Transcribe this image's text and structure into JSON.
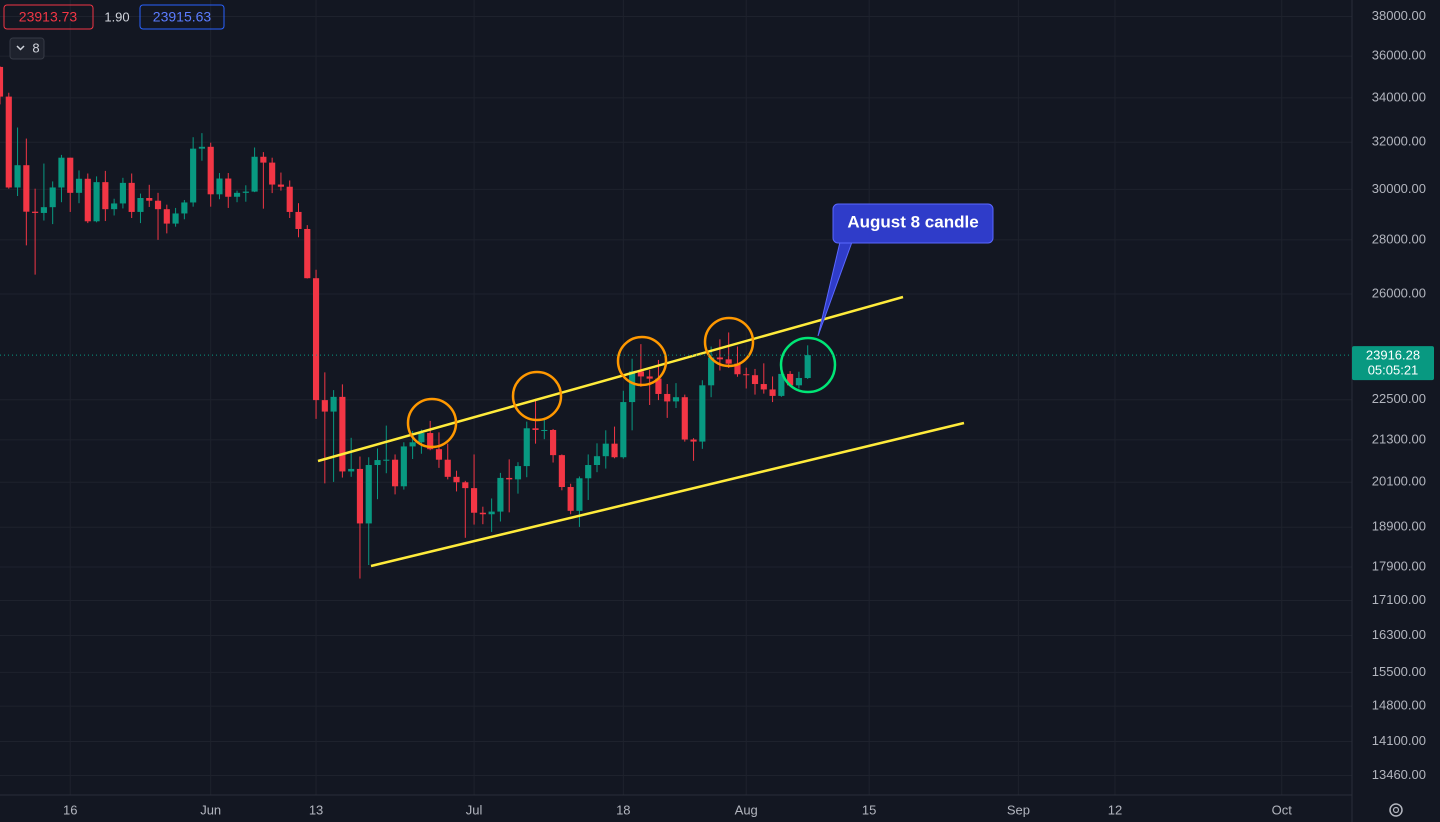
{
  "header": {
    "bid": "23913.73",
    "spread": "1.90",
    "ask": "23915.63",
    "interval": "8"
  },
  "annotation": "August 8 candle",
  "countdown": "05:05:21",
  "chart_data": {
    "type": "candlestick",
    "log_scale": true,
    "grid": true,
    "up_color": "#089981",
    "down_color": "#f23645",
    "last_price": 23916.28,
    "x": [
      "05-08",
      "05-09",
      "05-10",
      "05-11",
      "05-12",
      "05-13",
      "05-14",
      "05-15",
      "05-16",
      "05-17",
      "05-18",
      "05-19",
      "05-20",
      "05-21",
      "05-22",
      "05-23",
      "05-24",
      "05-25",
      "05-26",
      "05-27",
      "05-28",
      "05-29",
      "05-30",
      "05-31",
      "06-01",
      "06-02",
      "06-03",
      "06-04",
      "06-05",
      "06-06",
      "06-07",
      "06-08",
      "06-09",
      "06-10",
      "06-11",
      "06-12",
      "06-13",
      "06-14",
      "06-15",
      "06-16",
      "06-17",
      "06-18",
      "06-19",
      "06-20",
      "06-21",
      "06-22",
      "06-23",
      "06-24",
      "06-25",
      "06-26",
      "06-27",
      "06-28",
      "06-29",
      "06-30",
      "07-01",
      "07-02",
      "07-03",
      "07-04",
      "07-05",
      "07-06",
      "07-07",
      "07-08",
      "07-09",
      "07-10",
      "07-11",
      "07-12",
      "07-13",
      "07-14",
      "07-15",
      "07-16",
      "07-17",
      "07-18",
      "07-19",
      "07-20",
      "07-21",
      "07-22",
      "07-23",
      "07-24",
      "07-25",
      "07-26",
      "07-27",
      "07-28",
      "07-29",
      "07-30",
      "07-31",
      "08-01",
      "08-02",
      "08-03",
      "08-04",
      "08-05",
      "08-06",
      "08-07",
      "08-08"
    ],
    "open": [
      35470,
      34060,
      30080,
      31010,
      29100,
      29050,
      29280,
      30080,
      31330,
      29860,
      30440,
      28720,
      30300,
      29200,
      29430,
      30270,
      29090,
      29650,
      29540,
      29200,
      28630,
      29030,
      29470,
      31720,
      31800,
      29800,
      30450,
      29700,
      29860,
      29910,
      31370,
      31120,
      30200,
      30110,
      29090,
      28420,
      26570,
      22490,
      22140,
      22590,
      20400,
      20470,
      19000,
      20580,
      20720,
      20730,
      19990,
      21110,
      21230,
      21500,
      21030,
      20730,
      20250,
      20100,
      19940,
      19280,
      19240,
      19310,
      20220,
      20180,
      20550,
      21640,
      21590,
      21590,
      20860,
      19970,
      19330,
      20210,
      20580,
      20830,
      21190,
      20800,
      22430,
      23390,
      23230,
      23160,
      22680,
      22450,
      22580,
      21310,
      21250,
      22950,
      23840,
      23780,
      23640,
      23300,
      23270,
      22990,
      22820,
      22620,
      23310,
      22950,
      23180
    ],
    "high": [
      35500,
      34240,
      32650,
      32160,
      30030,
      31080,
      30330,
      31450,
      31330,
      30790,
      30660,
      30540,
      30770,
      29620,
      30480,
      30660,
      29830,
      30190,
      29860,
      29380,
      29250,
      29570,
      32220,
      32400,
      31980,
      30680,
      30680,
      29950,
      30170,
      31770,
      31570,
      31330,
      30700,
      30370,
      29440,
      28570,
      26880,
      23360,
      22800,
      22980,
      21360,
      20820,
      20800,
      21050,
      21720,
      20880,
      21230,
      21560,
      21600,
      21860,
      21520,
      21190,
      20420,
      20140,
      20880,
      19440,
      19660,
      20360,
      20740,
      20660,
      21840,
      22530,
      21960,
      21620,
      20880,
      20060,
      20260,
      20880,
      21200,
      21580,
      21690,
      22780,
      23800,
      24280,
      23440,
      23760,
      22990,
      23020,
      22660,
      21350,
      23110,
      24200,
      24440,
      24670,
      24200,
      23510,
      23470,
      23650,
      23230,
      23470,
      23400,
      23380,
      24240
    ],
    "low": [
      33700,
      30030,
      29730,
      27790,
      26700,
      28750,
      28610,
      29480,
      29090,
      29440,
      28650,
      28680,
      28730,
      28950,
      29230,
      28850,
      28650,
      29290,
      28000,
      28250,
      28510,
      28800,
      29300,
      31200,
      29300,
      29600,
      29250,
      29480,
      29500,
      29890,
      29220,
      29850,
      29950,
      28850,
      28100,
      26560,
      21920,
      20070,
      20110,
      20230,
      20250,
      17620,
      17950,
      19640,
      20350,
      19770,
      19900,
      20750,
      20900,
      21000,
      20500,
      20180,
      19850,
      18630,
      18970,
      18980,
      18780,
      19050,
      19290,
      19790,
      20240,
      21190,
      21320,
      20650,
      19880,
      19240,
      18910,
      19620,
      20380,
      20480,
      20770,
      20760,
      21580,
      22900,
      22340,
      22490,
      21950,
      22250,
      21250,
      20700,
      21040,
      22580,
      23420,
      23500,
      23220,
      22850,
      22660,
      22690,
      22430,
      22590,
      22920,
      22850,
      23150
    ],
    "close": [
      34060,
      30080,
      31010,
      29100,
      29050,
      29280,
      30080,
      31330,
      29860,
      30440,
      28720,
      30300,
      29200,
      29430,
      30270,
      29090,
      29650,
      29540,
      29200,
      28630,
      29030,
      29470,
      31720,
      31800,
      29800,
      30450,
      29700,
      29860,
      29910,
      31370,
      31120,
      30200,
      30110,
      29090,
      28420,
      26570,
      22490,
      22140,
      22590,
      20400,
      20470,
      19000,
      20580,
      20720,
      20730,
      19990,
      21110,
      21230,
      21500,
      21030,
      20730,
      20250,
      20100,
      19940,
      19280,
      19240,
      19310,
      20220,
      20180,
      20550,
      21640,
      21590,
      21590,
      20860,
      19970,
      19330,
      20210,
      20580,
      20830,
      21190,
      20800,
      22430,
      23390,
      23230,
      23160,
      22680,
      22450,
      22580,
      21310,
      21250,
      22950,
      23840,
      23780,
      23640,
      23300,
      23270,
      22990,
      22820,
      22620,
      23310,
      22950,
      23180,
      23916.28
    ],
    "xlim": [
      "05-08",
      "10-09"
    ],
    "xticks": [
      {
        "value": "05-16",
        "label": "16"
      },
      {
        "value": "06-01",
        "label": "Jun"
      },
      {
        "value": "06-13",
        "label": "13"
      },
      {
        "value": "07-01",
        "label": "Jul"
      },
      {
        "value": "07-18",
        "label": "18"
      },
      {
        "value": "08-01",
        "label": "Aug"
      },
      {
        "value": "08-15",
        "label": "15"
      },
      {
        "value": "09-01",
        "label": "Sep"
      },
      {
        "value": "09-12",
        "label": "12"
      },
      {
        "value": "10-01",
        "label": "Oct"
      }
    ],
    "ylim": [
      13106,
      38870
    ],
    "yticks": [
      {
        "value": 38000,
        "label": "38000.00"
      },
      {
        "value": 36000,
        "label": "36000.00"
      },
      {
        "value": 34000,
        "label": "34000.00"
      },
      {
        "value": 32000,
        "label": "32000.00"
      },
      {
        "value": 30000,
        "label": "30000.00"
      },
      {
        "value": 28000,
        "label": "28000.00"
      },
      {
        "value": 26000,
        "label": "26000.00"
      },
      {
        "value": 22500,
        "label": "22500.00"
      },
      {
        "value": 21300,
        "label": "21300.00"
      },
      {
        "value": 20100,
        "label": "20100.00"
      },
      {
        "value": 18900,
        "label": "18900.00"
      },
      {
        "value": 17900,
        "label": "17900.00"
      },
      {
        "value": 17100,
        "label": "17100.00"
      },
      {
        "value": 16300,
        "label": "16300.00"
      },
      {
        "value": 15500,
        "label": "15500.00"
      },
      {
        "value": 14800,
        "label": "14800.00"
      },
      {
        "value": 14100,
        "label": "14100.00"
      },
      {
        "value": 13460,
        "label": "13460.00"
      }
    ]
  }
}
